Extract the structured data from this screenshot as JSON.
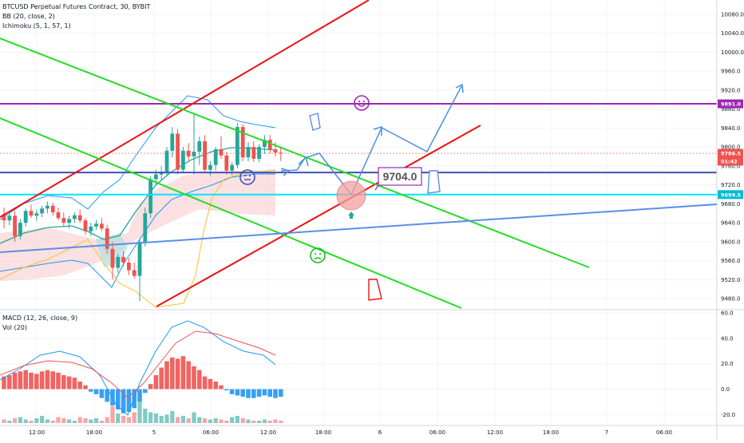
{
  "chart_data": {
    "type": "candlestick",
    "price_panel": {
      "title": "BTCUSD Perpetual Futures Contract, 30, BYBIT",
      "indicators": [
        "BB (20, close, 2)",
        "Ichimoku (5, 1, 57, 1)"
      ],
      "y_ticks": [
        10080.0,
        10040.0,
        10000.0,
        9960.0,
        9920.0,
        9880.0,
        9840.0,
        9800.0,
        9760.0,
        9720.0,
        9680.0,
        9640.0,
        9600.0,
        9560.0,
        9520.0,
        9480.0
      ],
      "ylim": [
        9460,
        10110
      ],
      "price_badges": [
        {
          "label": "9891.0",
          "value": 9891.0,
          "color": "#9c27b0"
        },
        {
          "label": "9786.5",
          "value": 9786.5,
          "color": "#ef5350"
        },
        {
          "label": "01:42",
          "value": 9770,
          "color": "#ef5350"
        },
        {
          "label": "9699.5",
          "value": 9699.5,
          "color": "#00bcd4"
        }
      ],
      "annotation": "9704.0",
      "horizontal_levels": [
        {
          "value": 9891.0,
          "color": "#9c27b0"
        },
        {
          "value": 9746,
          "color": "#3f51b5"
        },
        {
          "value": 9699.5,
          "color": "#00e5ff"
        }
      ],
      "candles": [
        [
          9658,
          9672,
          9628,
          9645
        ],
        [
          9645,
          9662,
          9635,
          9655
        ],
        [
          9655,
          9665,
          9600,
          9612
        ],
        [
          9612,
          9648,
          9605,
          9640
        ],
        [
          9640,
          9670,
          9632,
          9665
        ],
        [
          9665,
          9678,
          9650,
          9655
        ],
        [
          9655,
          9668,
          9644,
          9660
        ],
        [
          9660,
          9676,
          9652,
          9670
        ],
        [
          9670,
          9685,
          9660,
          9676
        ],
        [
          9676,
          9682,
          9655,
          9662
        ],
        [
          9662,
          9672,
          9645,
          9650
        ],
        [
          9650,
          9662,
          9632,
          9640
        ],
        [
          9640,
          9655,
          9628,
          9648
        ],
        [
          9648,
          9662,
          9640,
          9656
        ],
        [
          9656,
          9668,
          9640,
          9645
        ],
        [
          9645,
          9650,
          9615,
          9622
        ],
        [
          9622,
          9640,
          9612,
          9632
        ],
        [
          9632,
          9646,
          9625,
          9638
        ],
        [
          9638,
          9650,
          9622,
          9628
        ],
        [
          9628,
          9636,
          9575,
          9585
        ],
        [
          9585,
          9600,
          9520,
          9545
        ],
        [
          9545,
          9575,
          9535,
          9568
        ],
        [
          9568,
          9580,
          9548,
          9556
        ],
        [
          9556,
          9566,
          9530,
          9540
        ],
        [
          9540,
          9556,
          9522,
          9528
        ],
        [
          9528,
          9608,
          9475,
          9600
        ],
        [
          9600,
          9672,
          9590,
          9660
        ],
        [
          9660,
          9738,
          9650,
          9732
        ],
        [
          9732,
          9752,
          9722,
          9742
        ],
        [
          9742,
          9760,
          9730,
          9748
        ],
        [
          9748,
          9800,
          9740,
          9792
        ],
        [
          9792,
          9842,
          9778,
          9828
        ],
        [
          9828,
          9838,
          9742,
          9752
        ],
        [
          9752,
          9800,
          9745,
          9792
        ],
        [
          9792,
          9808,
          9770,
          9780
        ],
        [
          9780,
          9872,
          9742,
          9790
        ],
        [
          9790,
          9822,
          9762,
          9812
        ],
        [
          9812,
          9825,
          9745,
          9752
        ],
        [
          9752,
          9770,
          9740,
          9762
        ],
        [
          9762,
          9800,
          9750,
          9795
        ],
        [
          9795,
          9822,
          9775,
          9782
        ],
        [
          9782,
          9790,
          9742,
          9750
        ],
        [
          9750,
          9768,
          9740,
          9762
        ],
        [
          9762,
          9850,
          9755,
          9842
        ],
        [
          9842,
          9848,
          9770,
          9778
        ],
        [
          9778,
          9810,
          9770,
          9800
        ],
        [
          9800,
          9812,
          9768,
          9775
        ],
        [
          9775,
          9806,
          9768,
          9800
        ],
        [
          9800,
          9825,
          9785,
          9815
        ],
        [
          9815,
          9825,
          9786,
          9795
        ],
        [
          9795,
          9810,
          9780,
          9788
        ],
        [
          9788,
          9800,
          9770,
          9786
        ]
      ]
    },
    "macd_panel": {
      "title": "MACD (12, 26, close, 9)",
      "sub_title": "Vol (20)",
      "y_ticks": [
        60.0,
        40.0,
        20.0,
        0.0,
        -20.0
      ],
      "ylim": [
        -28,
        62
      ],
      "histogram": [
        10,
        11,
        13,
        14,
        15,
        13,
        12,
        14,
        15,
        14,
        13,
        11,
        10,
        9,
        6,
        3,
        -2,
        -4,
        -7,
        -10,
        -13,
        -16,
        -19,
        -18,
        -15,
        -10,
        -3,
        4,
        11,
        17,
        22,
        25,
        24,
        26,
        22,
        18,
        15,
        10,
        8,
        6,
        3,
        -1,
        -4,
        -5,
        -6,
        -7,
        -7,
        -6,
        -5,
        -6,
        -7,
        -6
      ],
      "volume": [
        3,
        2,
        4,
        5,
        3,
        2,
        4,
        6,
        3,
        2,
        5,
        4,
        3,
        2,
        5,
        4,
        3,
        4,
        2,
        5,
        14,
        8,
        6,
        5,
        9,
        18,
        12,
        9,
        8,
        6,
        7,
        10,
        5,
        6,
        4,
        9,
        5,
        4,
        3,
        4,
        3,
        2,
        5,
        6,
        4,
        3,
        2,
        2,
        3,
        2,
        3,
        2
      ],
      "volume_max": 30
    },
    "x_axis": {
      "ticks": [
        "12:00",
        "18:00",
        "5",
        "06:00",
        "12:00",
        "18:00",
        "6",
        "06:00",
        "12:00",
        "18:00",
        "7",
        "06:00"
      ]
    }
  }
}
